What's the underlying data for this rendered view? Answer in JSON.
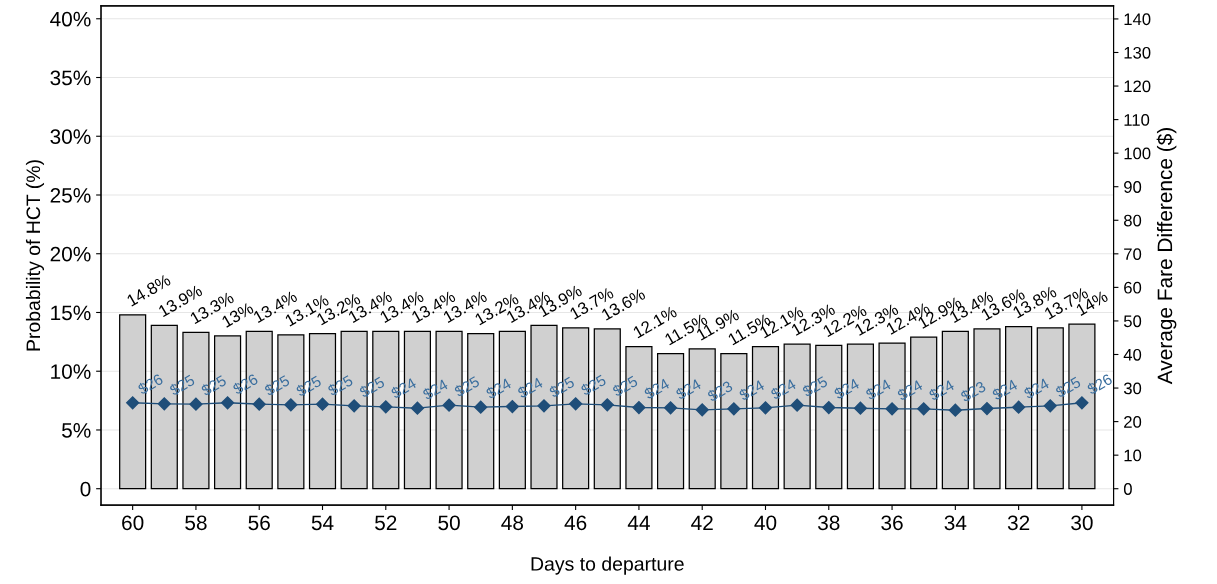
{
  "chart_data": {
    "type": "bar",
    "xlabel": "Days to departure",
    "ylabel": "Probability of HCT (%)",
    "y2label": "Average Fare Difference ($)",
    "x": [
      60,
      59,
      58,
      57,
      56,
      55,
      54,
      53,
      52,
      51,
      50,
      49,
      48,
      47,
      46,
      45,
      44,
      43,
      42,
      41,
      40,
      39,
      38,
      37,
      36,
      35,
      34,
      33,
      32,
      31,
      30
    ],
    "xlim": [
      61,
      29
    ],
    "xticks": [
      60,
      58,
      56,
      54,
      52,
      50,
      48,
      46,
      44,
      42,
      40,
      38,
      36,
      34,
      32,
      30
    ],
    "ylim": [
      -1.4,
      41.1
    ],
    "yticks": [
      0,
      {
        "value": 5,
        "label": "5%"
      },
      {
        "value": 10,
        "label": "10%"
      },
      {
        "value": 15,
        "label": "15%"
      },
      {
        "value": 20,
        "label": "20%"
      },
      {
        "value": 25,
        "label": "25%"
      },
      {
        "value": 30,
        "label": "30%"
      },
      {
        "value": 35,
        "label": "35%"
      },
      {
        "value": 40,
        "label": "40%"
      }
    ],
    "y2lim": [
      -4.9,
      143.9
    ],
    "y2ticks": [
      0,
      10,
      20,
      30,
      40,
      50,
      60,
      70,
      80,
      90,
      100,
      110,
      120,
      130,
      140
    ],
    "grid": "y",
    "legend": false,
    "series": [
      {
        "color": "#d0d0d0",
        "values": [
          14.8,
          13.9,
          13.3,
          13,
          13.4,
          13.1,
          13.2,
          13.4,
          13.4,
          13.4,
          13.4,
          13.2,
          13.4,
          13.9,
          13.7,
          13.6,
          12.1,
          11.5,
          11.9,
          11.5,
          12.1,
          12.3,
          12.2,
          12.3,
          12.4,
          12.9,
          13.4,
          13.6,
          13.8,
          13.7,
          14
        ],
        "value_labels": [
          "14.8%",
          "13.9%",
          "13.3%",
          "13%",
          "13.4%",
          "13.1%",
          "13.2%",
          "13.4%",
          "13.4%",
          "13.4%",
          "13.4%",
          "13.2%",
          "13.4%",
          "13.9%",
          "13.7%",
          "13.6%",
          "12.1%",
          "11.5%",
          "11.9%",
          "11.5%",
          "12.1%",
          "12.3%",
          "12.2%",
          "12.3%",
          "12.4%",
          "12.9%",
          "13.4%",
          "13.6%",
          "13.8%",
          "13.7%",
          "14%"
        ]
      },
      {
        "type": "line",
        "axis": "y2",
        "color": "#1f4e79",
        "marker": "diamond",
        "line_style": "solid",
        "values": [
          25.6,
          25.3,
          25.2,
          25.6,
          25.2,
          25,
          25.2,
          24.7,
          24.4,
          24,
          24.9,
          24.3,
          24.5,
          24.7,
          25.3,
          25,
          24.2,
          24.1,
          23.5,
          23.8,
          24.1,
          24.9,
          24.2,
          24,
          23.8,
          23.8,
          23.4,
          23.9,
          24.3,
          24.7,
          25.6
        ],
        "value_labels": [
          "$26",
          "$25",
          "$25",
          "$26",
          "$25",
          "$25",
          "$25",
          "$25",
          "$24",
          "$24",
          "$25",
          "$24",
          "$24",
          "$25",
          "$25",
          "$25",
          "$24",
          "$24",
          "$23",
          "$24",
          "$24",
          "$25",
          "$24",
          "$24",
          "$24",
          "$24",
          "$23",
          "$24",
          "$24",
          "$25",
          "$26"
        ]
      }
    ]
  }
}
